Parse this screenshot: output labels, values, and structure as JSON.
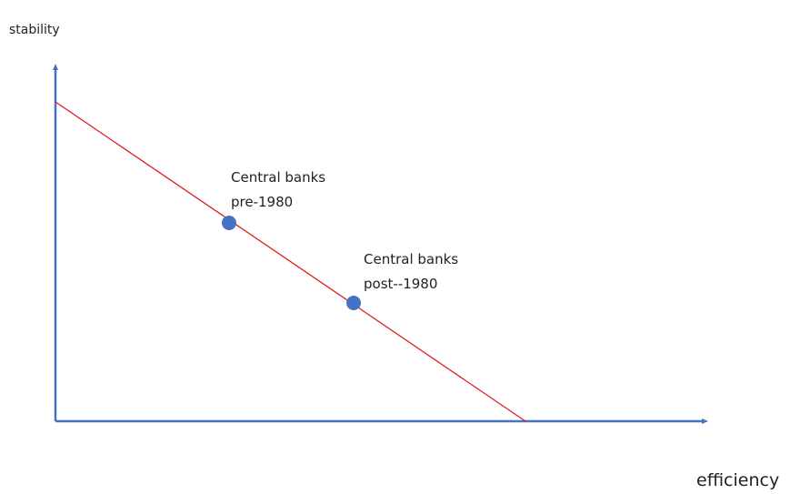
{
  "y_axis_label": "stability",
  "x_axis_label": "efficiency",
  "points": [
    {
      "label_lines": [
        "Central banks",
        "pre-1980"
      ]
    },
    {
      "label_lines": [
        "Central banks",
        "post--1980"
      ]
    }
  ]
}
